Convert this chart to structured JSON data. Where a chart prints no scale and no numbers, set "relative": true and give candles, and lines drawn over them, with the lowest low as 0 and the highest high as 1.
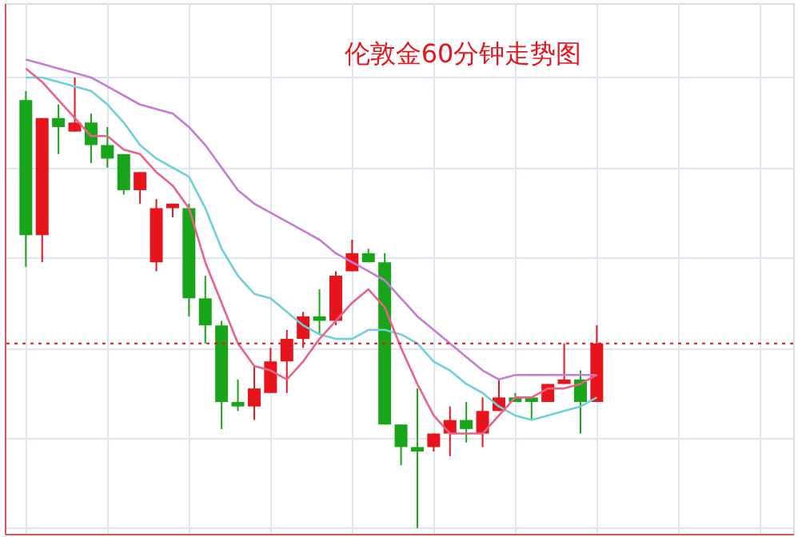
{
  "chart_data": {
    "type": "candlestick",
    "title": "伦敦金60分钟走势图",
    "relative": true,
    "grid": true,
    "tick_labels": false,
    "categories": [
      null,
      null,
      null,
      null,
      null,
      null,
      null,
      null,
      null,
      null,
      null,
      null,
      null,
      null,
      null,
      null,
      null,
      null,
      null,
      null,
      null,
      null,
      null,
      null,
      null,
      null,
      null,
      null,
      null,
      null,
      null,
      null,
      null,
      null,
      null,
      null
    ],
    "ohlc": [
      [
        0.95,
        0.97,
        0.58,
        0.65
      ],
      [
        0.65,
        0.91,
        0.59,
        0.91
      ],
      [
        0.91,
        0.94,
        0.83,
        0.89
      ],
      [
        0.88,
        1.0,
        0.88,
        0.9
      ],
      [
        0.9,
        0.92,
        0.81,
        0.85
      ],
      [
        0.85,
        0.89,
        0.8,
        0.82
      ],
      [
        0.83,
        0.83,
        0.74,
        0.75
      ],
      [
        0.75,
        0.79,
        0.72,
        0.79
      ],
      [
        0.59,
        0.73,
        0.57,
        0.71
      ],
      [
        0.71,
        0.72,
        0.69,
        0.72
      ],
      [
        0.71,
        0.72,
        0.47,
        0.51
      ],
      [
        0.51,
        0.56,
        0.41,
        0.45
      ],
      [
        0.45,
        0.46,
        0.22,
        0.28
      ],
      [
        0.28,
        0.33,
        0.26,
        0.27
      ],
      [
        0.27,
        0.36,
        0.24,
        0.31
      ],
      [
        0.3,
        0.4,
        0.3,
        0.37
      ],
      [
        0.37,
        0.44,
        0.3,
        0.42
      ],
      [
        0.42,
        0.48,
        0.4,
        0.47
      ],
      [
        0.47,
        0.53,
        0.43,
        0.46
      ],
      [
        0.46,
        0.57,
        0.45,
        0.56
      ],
      [
        0.57,
        0.64,
        0.57,
        0.61
      ],
      [
        0.61,
        0.62,
        0.59,
        0.59
      ],
      [
        0.59,
        0.61,
        0.23,
        0.23
      ],
      [
        0.23,
        0.23,
        0.14,
        0.18
      ],
      [
        0.18,
        0.31,
        0.0,
        0.17
      ],
      [
        0.18,
        0.21,
        0.17,
        0.21
      ],
      [
        0.21,
        0.27,
        0.16,
        0.24
      ],
      [
        0.24,
        0.28,
        0.19,
        0.22
      ],
      [
        0.21,
        0.29,
        0.18,
        0.26
      ],
      [
        0.26,
        0.33,
        0.26,
        0.29
      ],
      [
        0.29,
        0.3,
        0.28,
        0.28
      ],
      [
        0.29,
        0.29,
        0.24,
        0.28
      ],
      [
        0.28,
        0.32,
        0.28,
        0.32
      ],
      [
        0.32,
        0.41,
        0.32,
        0.33
      ],
      [
        0.33,
        0.35,
        0.21,
        0.28
      ],
      [
        0.28,
        0.45,
        0.28,
        0.41
      ]
    ],
    "colors": [
      "#19a519",
      "#e8141b",
      "#19a519",
      "#e8141b",
      "#19a519",
      "#19a519",
      "#19a519",
      "#e8141b",
      "#e8141b",
      "#e8141b",
      "#19a519",
      "#19a519",
      "#19a519",
      "#19a519",
      "#e8141b",
      "#e8141b",
      "#e8141b",
      "#e8141b",
      "#19a519",
      "#e8141b",
      "#e8141b",
      "#19a519",
      "#19a519",
      "#19a519",
      "#19a519",
      "#e8141b",
      "#e8141b",
      "#19a519",
      "#e8141b",
      "#e8141b",
      "#19a519",
      "#19a519",
      "#e8141b",
      "#e8141b",
      "#19a519",
      "#e8141b"
    ],
    "series": [
      {
        "type": "line",
        "color": "#c57bd3",
        "values": [
          1.04,
          1.03,
          1.02,
          1.01,
          1.0,
          0.98,
          0.96,
          0.94,
          0.93,
          0.92,
          0.89,
          0.85,
          0.8,
          0.75,
          0.72,
          0.7,
          0.68,
          0.66,
          0.64,
          0.61,
          0.59,
          0.57,
          0.55,
          0.51,
          0.47,
          0.44,
          0.41,
          0.38,
          0.35,
          0.33,
          0.34,
          0.34,
          0.34,
          0.34,
          0.34,
          0.34
        ]
      },
      {
        "type": "line",
        "color": "#6dd0da",
        "values": [
          1.0,
          1.0,
          0.99,
          0.98,
          0.97,
          0.94,
          0.9,
          0.85,
          0.82,
          0.8,
          0.78,
          0.71,
          0.62,
          0.56,
          0.52,
          0.51,
          0.48,
          0.45,
          0.43,
          0.42,
          0.42,
          0.44,
          0.44,
          0.43,
          0.41,
          0.37,
          0.35,
          0.32,
          0.3,
          0.27,
          0.25,
          0.24,
          0.25,
          0.26,
          0.27,
          0.29
        ]
      },
      {
        "type": "line",
        "color": "#e8628a",
        "values": [
          1.02,
          0.99,
          0.95,
          0.91,
          0.87,
          0.87,
          0.84,
          0.83,
          0.79,
          0.76,
          0.71,
          0.59,
          0.5,
          0.41,
          0.36,
          0.35,
          0.33,
          0.37,
          0.42,
          0.46,
          0.5,
          0.53,
          0.49,
          0.4,
          0.32,
          0.25,
          0.21,
          0.21,
          0.21,
          0.25,
          0.29,
          0.29,
          0.31,
          0.31,
          0.32,
          0.34
        ]
      }
    ],
    "ref_lines": [
      {
        "axis": "y",
        "value": 0.41,
        "color": "#e8141b",
        "line_style": "dotted"
      }
    ]
  }
}
